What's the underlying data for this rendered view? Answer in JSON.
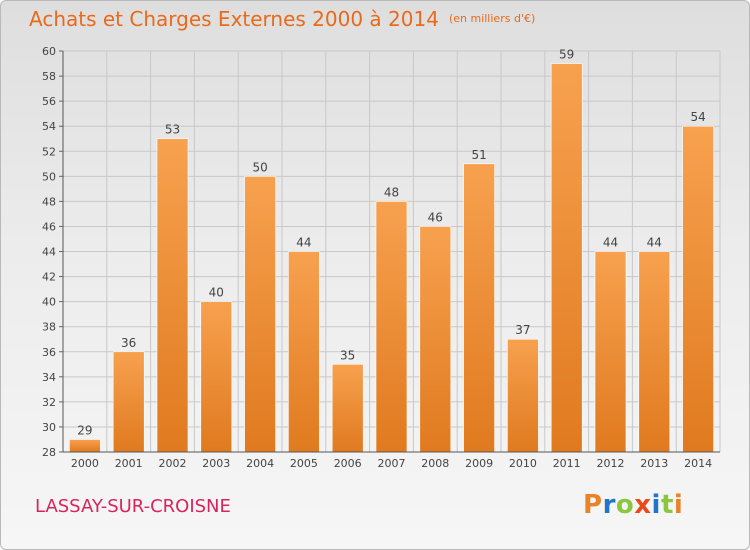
{
  "header": {
    "title": "Achats et Charges Externes 2000 à 2014",
    "unit": "(en milliers d'€)"
  },
  "footer": {
    "commune": "LASSAY-SUR-CROISNE",
    "logo_text": "Proxiti",
    "logo_colors": [
      "#e8832a",
      "#1f76c9",
      "#8cc63f",
      "#e84a1a",
      "#1f76c9",
      "#8cc63f",
      "#e8832a"
    ]
  },
  "colors": {
    "bar_light": "#f7a14f",
    "bar_dark": "#e07a1f",
    "title": "#e86a1a",
    "commune": "#d8245e",
    "grid": "#c8c8c8",
    "text": "#444444"
  },
  "chart_data": {
    "type": "bar",
    "title": "Achats et Charges Externes 2000 à 2014",
    "xlabel": "",
    "ylabel": "",
    "categories": [
      "2000",
      "2001",
      "2002",
      "2003",
      "2004",
      "2005",
      "2006",
      "2007",
      "2008",
      "2009",
      "2010",
      "2011",
      "2012",
      "2013",
      "2014"
    ],
    "values": [
      29,
      36,
      53,
      40,
      50,
      44,
      35,
      48,
      46,
      51,
      37,
      59,
      44,
      44,
      54
    ],
    "ylim": [
      28,
      60
    ],
    "ytick_step": 2,
    "grid": true,
    "legend": "none"
  }
}
